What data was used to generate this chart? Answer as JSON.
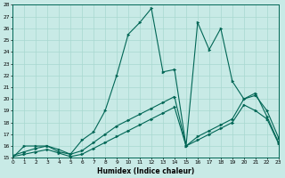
{
  "bg_color": "#c8eae6",
  "line_color": "#006655",
  "grid_color": "#a8d8d0",
  "xlabel": "Humidex (Indice chaleur)",
  "xlim": [
    0,
    23
  ],
  "ylim": [
    15,
    28
  ],
  "yticks": [
    15,
    16,
    17,
    18,
    19,
    20,
    21,
    22,
    23,
    24,
    25,
    26,
    27,
    28
  ],
  "xticks": [
    0,
    1,
    2,
    3,
    4,
    5,
    6,
    7,
    8,
    9,
    10,
    11,
    12,
    13,
    14,
    15,
    16,
    17,
    18,
    19,
    20,
    21,
    22,
    23
  ],
  "curve_main_x": [
    0,
    1,
    2,
    3,
    4,
    5,
    6,
    7,
    8,
    9,
    10,
    11,
    12,
    13,
    14,
    15,
    16,
    17,
    18,
    19,
    20,
    21,
    22,
    23
  ],
  "curve_main_y": [
    15,
    16,
    16,
    16,
    15.5,
    15.3,
    16.5,
    17.2,
    19.0,
    22.0,
    25.5,
    26.5,
    27.7,
    22.3,
    22.5,
    16.0,
    26.5,
    24.2,
    26.0,
    21.5,
    20.0,
    20.5,
    18.5,
    16.3
  ],
  "curve_lo1_x": [
    0,
    1,
    2,
    3,
    4,
    5,
    6,
    7,
    8,
    9,
    10,
    11,
    12,
    13,
    14,
    15,
    16,
    17,
    18,
    19,
    20,
    21,
    22,
    23
  ],
  "curve_lo1_y": [
    15.1,
    15.3,
    15.5,
    15.7,
    15.4,
    15.1,
    15.3,
    15.8,
    16.3,
    16.8,
    17.3,
    17.8,
    18.3,
    18.8,
    19.3,
    16.0,
    16.5,
    17.0,
    17.5,
    18.0,
    19.5,
    19.0,
    18.3,
    16.2
  ],
  "curve_lo2_x": [
    0,
    1,
    2,
    3,
    4,
    5,
    6,
    7,
    8,
    9,
    10,
    11,
    12,
    13,
    14,
    15,
    16,
    17,
    18,
    19,
    20,
    21,
    22,
    23
  ],
  "curve_lo2_y": [
    15.2,
    15.5,
    15.8,
    16.0,
    15.7,
    15.3,
    15.6,
    16.3,
    17.0,
    17.7,
    18.2,
    18.7,
    19.2,
    19.7,
    20.2,
    16.0,
    16.8,
    17.3,
    17.8,
    18.3,
    20.0,
    20.3,
    19.0,
    16.7
  ]
}
